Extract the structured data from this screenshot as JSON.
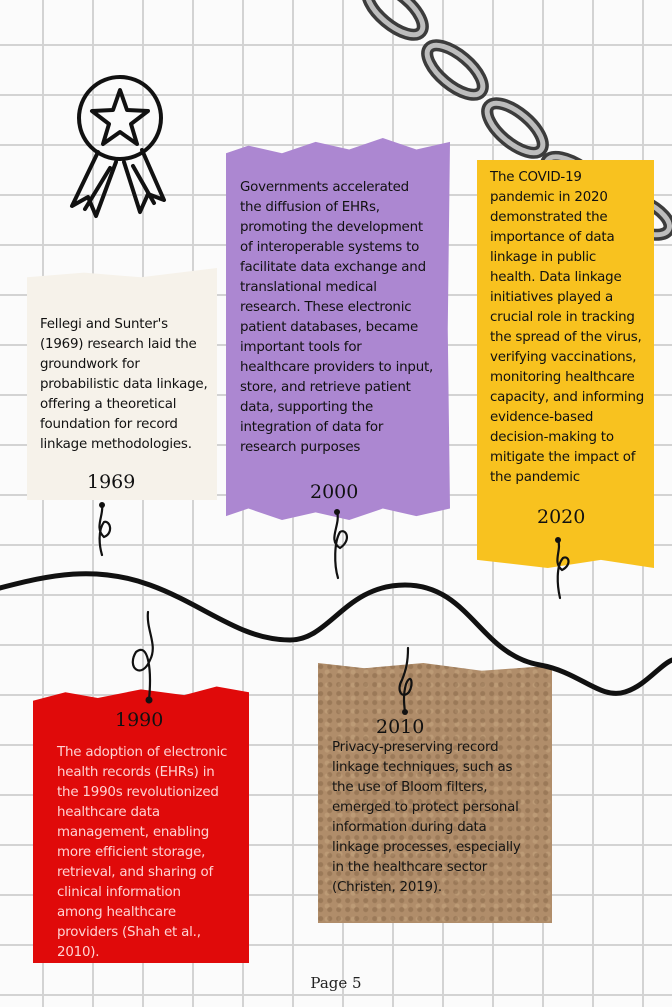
{
  "page_number": "Page 5",
  "icons": [
    "award-ribbon-icon",
    "chain-icon"
  ],
  "colors": {
    "grid": "#d3d3d3",
    "note_1969": "#f6f2ea",
    "note_2000": "#ac87d1",
    "note_2020": "#f8c21f",
    "note_1990": "#e00a0a",
    "note_2010": "#b08d6a",
    "line": "#111111"
  },
  "timeline": {
    "1969": {
      "year": "1969",
      "text": "Fellegi and Sunter's (1969) research laid the groundwork for probabilistic data linkage, offering a theoretical foundation for record linkage methodologies.",
      "lines": [
        "Fellegi and Sunter's",
        "(1969) research laid the",
        "groundwork for",
        "probabilistic data linkage,",
        "offering a theoretical",
        "foundation for record",
        "linkage methodologies."
      ]
    },
    "2000": {
      "year": "2000",
      "text": "Governments accelerated the diffusion of EHRs, promoting the development of interoperable systems to facilitate data exchange and translational medical research. These electronic patient databases, became important tools for healthcare providers to input, store, and retrieve patient data, supporting the integration of data for research purposes",
      "lines": [
        "Governments accelerated",
        "the diffusion of EHRs,",
        "promoting the development",
        "of interoperable systems to",
        "facilitate data exchange and",
        "translational medical",
        "research. These electronic",
        "patient databases, became",
        "important tools for",
        "healthcare providers to input,",
        "store, and retrieve patient",
        "data, supporting the",
        "integration of data for",
        "research purposes"
      ]
    },
    "2020": {
      "year": "2020",
      "text": "The COVID-19 pandemic in 2020 demonstrated the importance of data linkage in public health. Data linkage initiatives played a crucial role in tracking the spread of the virus, verifying vaccinations, monitoring healthcare capacity, and informing evidence-based decision-making to mitigate the impact of the pandemic",
      "lines": [
        "The COVID-19",
        "pandemic in 2020",
        "demonstrated the",
        "importance of data",
        "linkage in public",
        "health. Data linkage",
        "initiatives played a",
        "crucial role in tracking",
        "the spread of the virus,",
        "verifying vaccinations,",
        "monitoring healthcare",
        "capacity, and informing",
        "evidence-based",
        "decision-making to",
        "mitigate the impact of",
        "the pandemic"
      ]
    },
    "1990": {
      "year": "1990",
      "text": "The adoption of electronic health records (EHRs) in the 1990s revolutionized healthcare data management, enabling more efficient storage, retrieval, and sharing of clinical information among healthcare providers (Shah et al., 2010).",
      "lines": [
        "The adoption of electronic",
        "health records (EHRs) in",
        "the 1990s revolutionized",
        "healthcare data",
        "management, enabling",
        "more efficient storage,",
        "retrieval, and sharing of",
        "clinical information",
        "among healthcare",
        "providers (Shah et al.,",
        "2010)."
      ]
    },
    "2010": {
      "year": "2010",
      "text": "Privacy-preserving record linkage techniques, such as the use of Bloom filters, emerged to protect personal information during data linkage processes, especially in the healthcare sector (Christen, 2019).",
      "lines": [
        "Privacy-preserving record",
        "linkage techniques, such as",
        "the use of Bloom filters,",
        "emerged to protect personal",
        "information during data",
        "linkage processes, especially",
        "in the healthcare sector",
        "(Christen, 2019)."
      ]
    }
  }
}
